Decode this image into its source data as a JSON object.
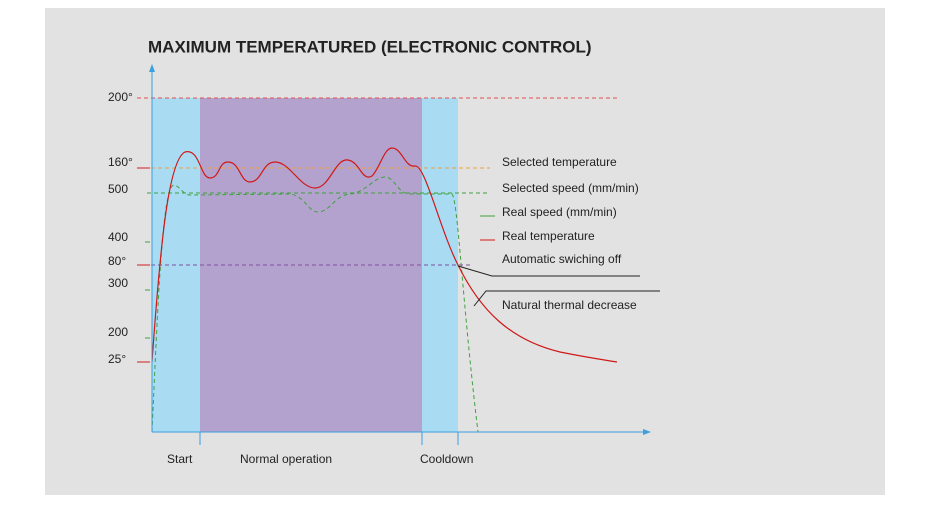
{
  "title": "MAXIMUM TEMPERATURED (ELECTRONIC CONTROL)",
  "axis_labels": [
    "200°",
    "160°",
    "500",
    "400",
    "80°",
    "300",
    "200",
    "25°"
  ],
  "legend": [
    "Selected temperature",
    "Selected speed (mm/min)",
    "Real speed (mm/min)",
    "Real temperature",
    "Automatic swiching off",
    "Natural thermal decrease"
  ],
  "phases": [
    "Start",
    "Normal operation",
    "Cooldown"
  ]
}
